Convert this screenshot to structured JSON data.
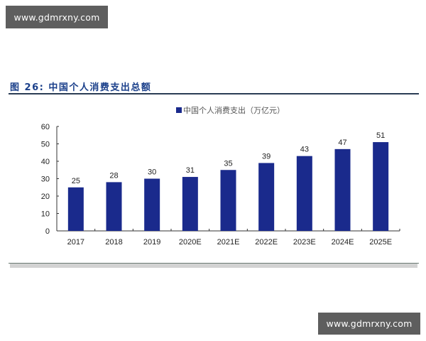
{
  "watermarks": {
    "top": "www.gdmrxny.com",
    "bottom": "www.gdmrxny.com"
  },
  "figure": {
    "title": "图 26:  中国个人消费支出总额",
    "legend_label": "中国个人消费支出（万亿元）"
  },
  "colors": {
    "bar": "#1a2a8c",
    "title": "#1a3f8a",
    "axis": "#333333"
  },
  "chart_data": {
    "type": "bar",
    "title": "中国个人消费支出总额",
    "categories": [
      "2017",
      "2018",
      "2019",
      "2020E",
      "2021E",
      "2022E",
      "2023E",
      "2024E",
      "2025E"
    ],
    "series": [
      {
        "name": "中国个人消费支出（万亿元）",
        "values": [
          25,
          28,
          30,
          31,
          35,
          39,
          43,
          47,
          51
        ]
      }
    ],
    "values": [
      25,
      28,
      30,
      31,
      35,
      39,
      43,
      47,
      51
    ],
    "xlabel": "",
    "ylabel": "",
    "ylim": [
      0,
      60
    ],
    "yticks": [
      0,
      10,
      20,
      30,
      40,
      50,
      60
    ],
    "grid": false,
    "legend_position": "top",
    "data_labels": true
  }
}
